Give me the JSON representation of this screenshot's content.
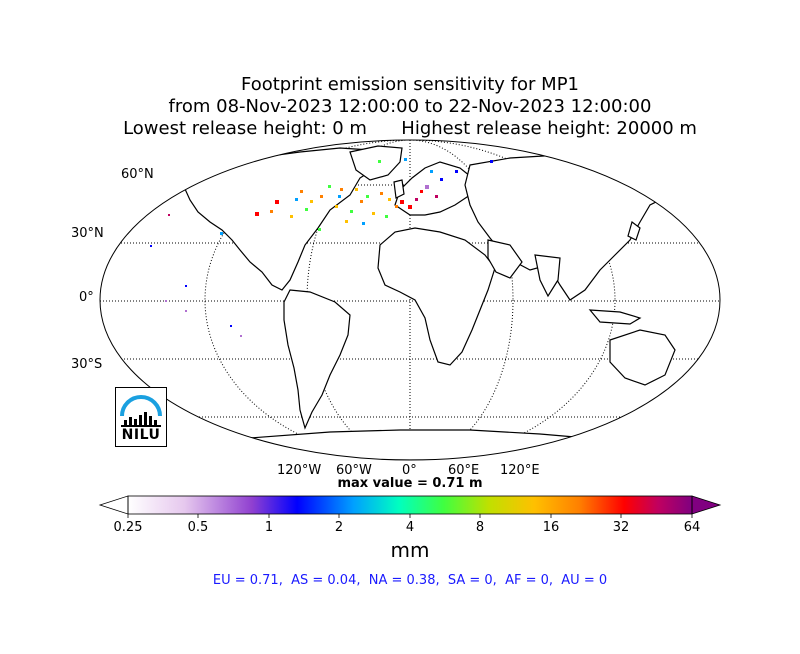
{
  "title": {
    "line1": "Footprint emission sensitivity for MP1",
    "line2": "from 08-Nov-2023 12:00:00 to 22-Nov-2023 12:00:00",
    "line3": "Lowest release height: 0 m      Highest release height: 20000 m"
  },
  "map": {
    "projection": "Robinson",
    "lat_labels": [
      "60°N",
      "30°N",
      "0°",
      "30°S"
    ],
    "lon_labels": [
      "120°W",
      "60°W",
      "0°",
      "60°E",
      "120°E"
    ],
    "grid_style": "dotted"
  },
  "max_value_text": "max value = 0.71 m",
  "colorbar": {
    "ticks": [
      "0.25",
      "0.5",
      "1",
      "2",
      "4",
      "8",
      "16",
      "32",
      "64"
    ],
    "unit": "mm",
    "colors": [
      "#ffffff",
      "#b070d0",
      "#0000ff",
      "#00c8ff",
      "#00ff80",
      "#a0e000",
      "#ffc000",
      "#ff8000",
      "#ff0000",
      "#c00060",
      "#800080"
    ]
  },
  "region_summary": "EU = 0.71,  AS = 0.04,  NA = 0.38,  SA = 0,  AF = 0,  AU = 0",
  "logo": {
    "text": "NILU",
    "arc_color": "#1aa0e0"
  }
}
